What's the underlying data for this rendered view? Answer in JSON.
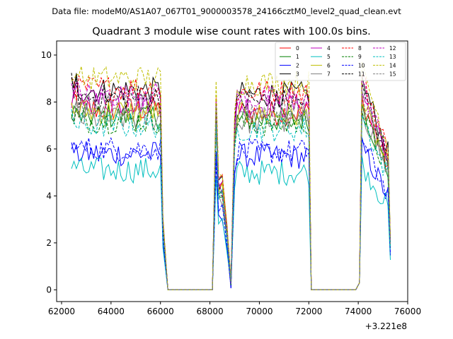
{
  "header": {
    "data_file": "Data file: modeM0/AS1A07_067T01_9000003578_24166cztM0_level2_quad_clean.evt"
  },
  "chart_data": {
    "type": "line",
    "title": "Quadrant 3 module wise count rates with 100.0s bins.",
    "xlabel": "",
    "ylabel": "",
    "x_offset_label": "+3.221e8",
    "xlim": [
      61800,
      76000
    ],
    "ylim": [
      -0.5,
      10.6
    ],
    "xticks": [
      62000,
      64000,
      66000,
      68000,
      70000,
      72000,
      74000,
      76000
    ],
    "xtick_labels": [
      "62000",
      "64000",
      "66000",
      "68000",
      "70000",
      "72000",
      "74000",
      "76000"
    ],
    "yticks": [
      0,
      2,
      4,
      6,
      8,
      10
    ],
    "ytick_labels": [
      "0",
      "2",
      "4",
      "6",
      "8",
      "10"
    ],
    "grid": false,
    "legend_position": "top-right",
    "legend_columns": 4,
    "segments": [
      {
        "start": 62400,
        "end": 66000,
        "drop_end": 66300
      },
      {
        "start": 68200,
        "end": 72000,
        "dip_at": 68900,
        "drop_end": 72100
      },
      {
        "start": 74000,
        "end": 75300
      }
    ],
    "gaps": [
      [
        66300,
        68100
      ],
      [
        72100,
        73900
      ]
    ],
    "series": [
      {
        "name": "0",
        "color": "#ff0000",
        "dash": "solid",
        "level": 7.7
      },
      {
        "name": "1",
        "color": "#008000",
        "dash": "solid",
        "level": 7.4
      },
      {
        "name": "2",
        "color": "#0000ff",
        "dash": "solid",
        "level": 5.8
      },
      {
        "name": "3",
        "color": "#000000",
        "dash": "solid",
        "level": 8.5
      },
      {
        "name": "4",
        "color": "#bf00bf",
        "dash": "solid",
        "level": 8.0
      },
      {
        "name": "5",
        "color": "#00bfbf",
        "dash": "solid",
        "level": 5.1
      },
      {
        "name": "6",
        "color": "#bfbf00",
        "dash": "solid",
        "level": 7.6
      },
      {
        "name": "7",
        "color": "#808080",
        "dash": "solid",
        "level": 7.3
      },
      {
        "name": "8",
        "color": "#ff0000",
        "dash": "dashed",
        "level": 8.6
      },
      {
        "name": "9",
        "color": "#008000",
        "dash": "dashed",
        "level": 7.2
      },
      {
        "name": "10",
        "color": "#0000ff",
        "dash": "dashed",
        "level": 6.0
      },
      {
        "name": "11",
        "color": "#000000",
        "dash": "dashed",
        "level": 8.2
      },
      {
        "name": "12",
        "color": "#bf00bf",
        "dash": "dashed",
        "level": 8.3
      },
      {
        "name": "13",
        "color": "#00bfbf",
        "dash": "dashed",
        "level": 7.0
      },
      {
        "name": "14",
        "color": "#bfbf00",
        "dash": "dashed",
        "level": 9.0
      },
      {
        "name": "15",
        "color": "#808080",
        "dash": "dashed",
        "level": 7.8
      }
    ]
  }
}
